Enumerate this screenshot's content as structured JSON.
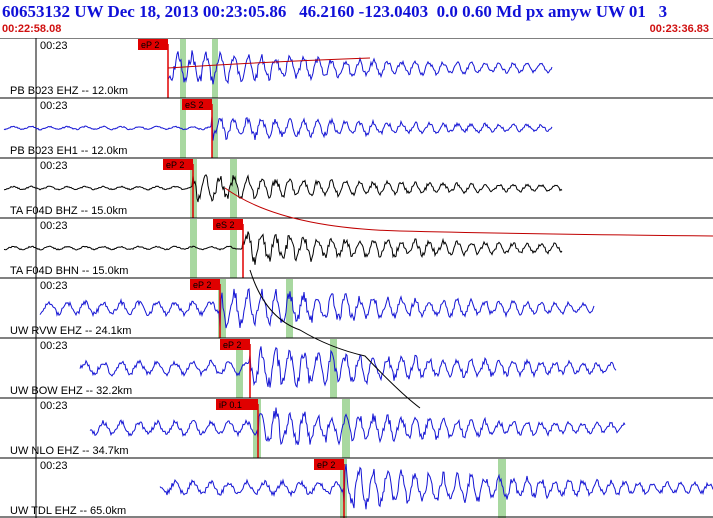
{
  "header": {
    "title": "60653132 UW Dec 18, 2013 00:23:05.86   46.2160 -123.0403  0.0 0.60 Md px amyw UW 01   3",
    "start_time": "00:22:58.08",
    "end_time": "00:23:36.83"
  },
  "colors": {
    "title": "#1010d8",
    "time": "#d01010",
    "trace_blue": "#1414d4",
    "trace_black": "#000000",
    "pick": "#e00000",
    "window": "#a8d8a0",
    "curve_red": "#c00000"
  },
  "traces": [
    {
      "label": "PB B023 EHZ -- 12.0km",
      "tick": "00:23",
      "pick": "eP 2",
      "color": "blue",
      "amp": 0.8
    },
    {
      "label": "PB B023 EH1 -- 12.0km",
      "tick": "00:23",
      "pick": "eS 2",
      "color": "blue",
      "amp": 0.55
    },
    {
      "label": "TA F04D BHZ -- 15.0km",
      "tick": "00:23",
      "pick": "eP 2",
      "color": "black",
      "amp": 0.6
    },
    {
      "label": "TA F04D BHN -- 15.0km",
      "tick": "00:23",
      "pick": "eS 2",
      "color": "black",
      "amp": 0.7
    },
    {
      "label": "UW RVW EHZ -- 24.1km",
      "tick": "00:23",
      "pick": "eP 2",
      "color": "blue",
      "amp": 0.95
    },
    {
      "label": "UW BOW EHZ -- 32.2km",
      "tick": "00:23",
      "pick": "eP 2",
      "color": "blue",
      "amp": 0.95
    },
    {
      "label": "UW NLO EHZ -- 34.7km",
      "tick": "00:23",
      "pick": "iP 0.1",
      "color": "blue",
      "amp": 0.9
    },
    {
      "label": "UW TDL EHZ -- 65.0km",
      "tick": "00:23",
      "pick": "eP 2",
      "color": "blue",
      "amp": 0.95
    }
  ]
}
